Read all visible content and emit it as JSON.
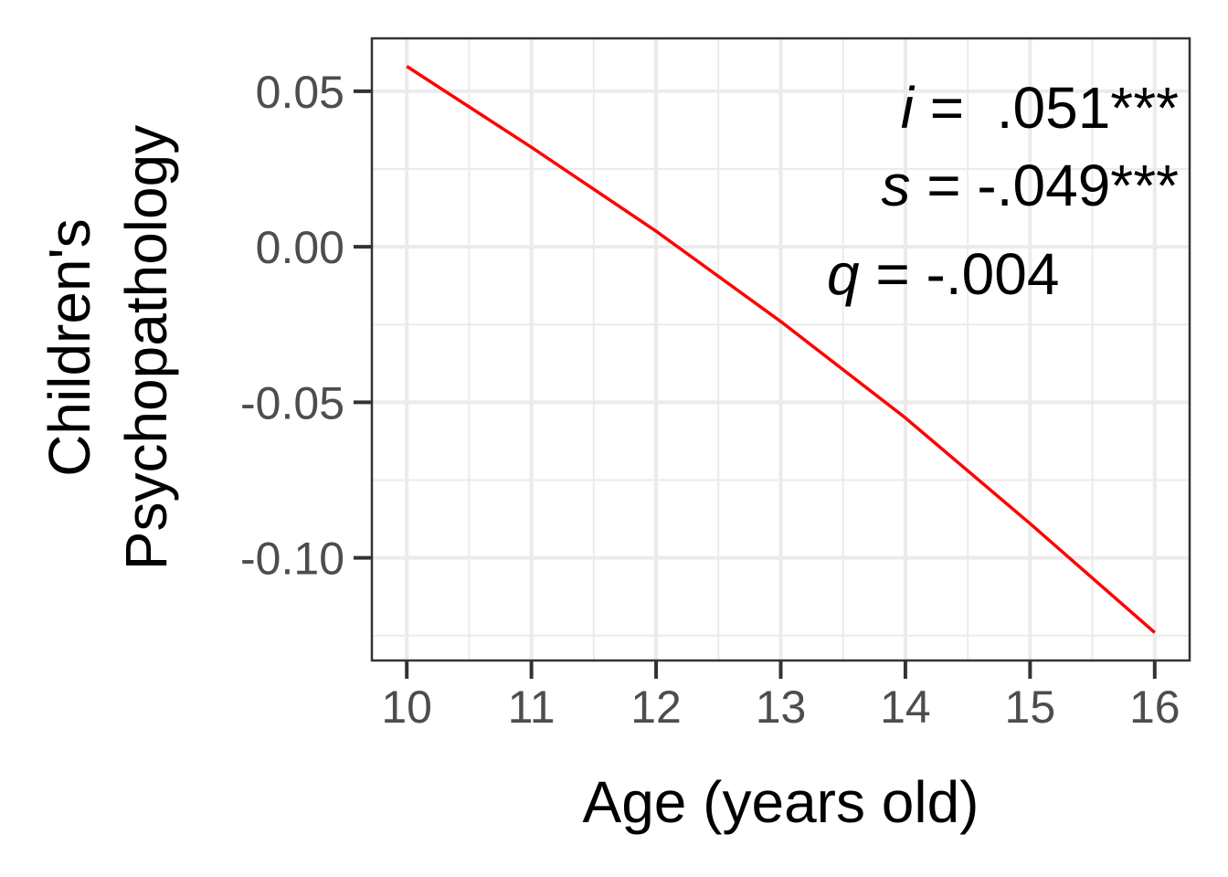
{
  "chart_data": {
    "type": "line",
    "title": "",
    "xlabel": "Age (years old)",
    "ylabel_lines": [
      "Children's",
      "Psychopathology"
    ],
    "x": [
      10,
      11,
      12,
      13,
      14,
      15,
      16
    ],
    "series": [
      {
        "values": [
          0.058,
          0.032,
          0.005,
          -0.024,
          -0.055,
          -0.089,
          -0.124
        ],
        "color": "#ff0000"
      }
    ],
    "xlim": [
      9.72,
      16.28
    ],
    "ylim": [
      -0.133,
      0.067
    ],
    "x_ticks": [
      10,
      11,
      12,
      13,
      14,
      15,
      16
    ],
    "x_tick_labels": [
      "10",
      "11",
      "12",
      "13",
      "14",
      "15",
      "16"
    ],
    "y_ticks": [
      0.05,
      0.0,
      -0.05,
      -0.1
    ],
    "y_tick_labels": [
      "0.05",
      "0.00",
      "-0.05",
      "-0.10"
    ],
    "grid": true,
    "legend": "none",
    "annotations": [
      {
        "symbol": "i",
        "text": " =  .051***"
      },
      {
        "symbol": "s",
        "text": " = -.049***"
      },
      {
        "symbol": "q",
        "text": " = -.004"
      }
    ]
  }
}
